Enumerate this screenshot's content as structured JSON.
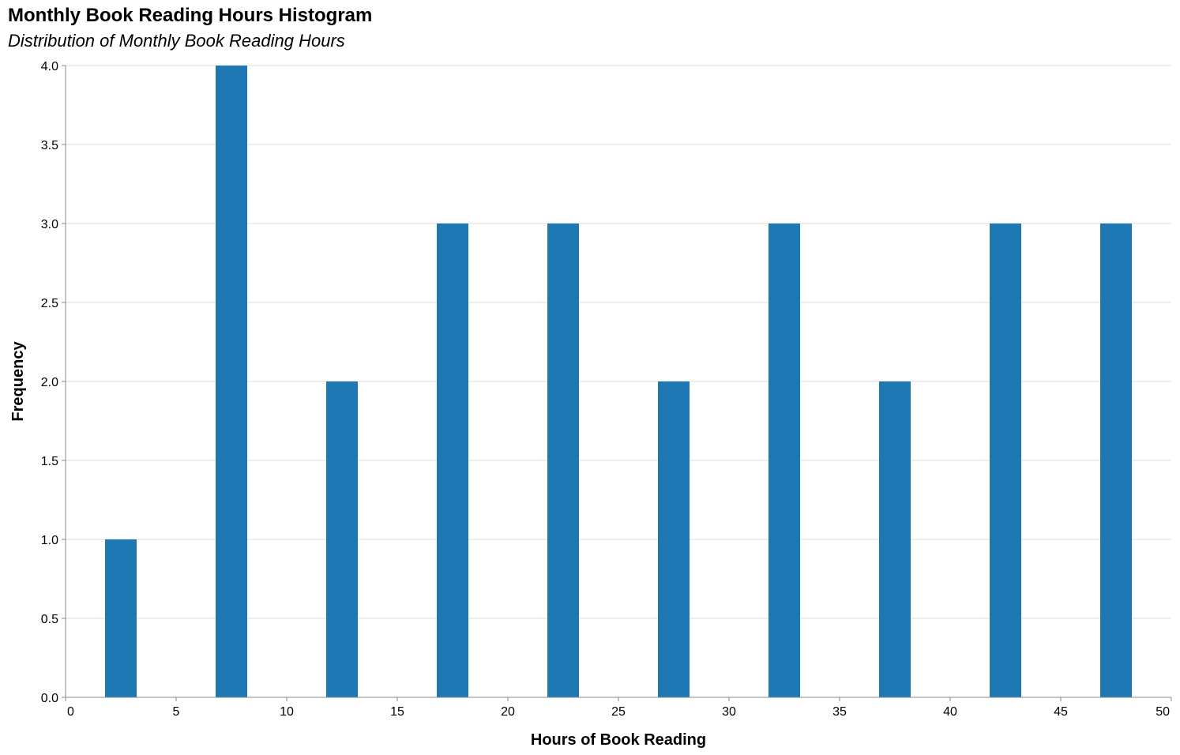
{
  "chart_data": {
    "type": "bar",
    "title": "Monthly Book Reading Hours Histogram",
    "subtitle": "Distribution of Monthly Book Reading Hours",
    "xlabel": "Hours of Book Reading",
    "ylabel": "Frequency",
    "bins": [
      {
        "start": 0,
        "end": 5,
        "value": 1
      },
      {
        "start": 5,
        "end": 10,
        "value": 4
      },
      {
        "start": 10,
        "end": 15,
        "value": 2
      },
      {
        "start": 15,
        "end": 20,
        "value": 3
      },
      {
        "start": 20,
        "end": 25,
        "value": 3
      },
      {
        "start": 25,
        "end": 30,
        "value": 2
      },
      {
        "start": 30,
        "end": 35,
        "value": 3
      },
      {
        "start": 35,
        "end": 40,
        "value": 2
      },
      {
        "start": 40,
        "end": 45,
        "value": 3
      },
      {
        "start": 45,
        "end": 50,
        "value": 3
      }
    ],
    "xlim": [
      0,
      50
    ],
    "ylim": [
      0,
      4
    ],
    "x_ticks": [
      "0",
      "5",
      "10",
      "15",
      "20",
      "25",
      "30",
      "35",
      "40",
      "45",
      "50"
    ],
    "y_ticks": [
      "0.0",
      "0.5",
      "1.0",
      "1.5",
      "2.0",
      "2.5",
      "3.0",
      "3.5",
      "4.0"
    ],
    "grid": true,
    "bar_color": "#1f77b4"
  }
}
